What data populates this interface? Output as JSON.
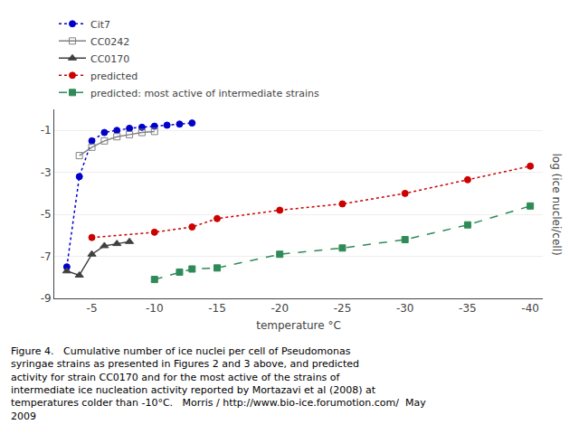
{
  "chart_data": {
    "type": "line",
    "x_label": "temperature °C",
    "y_label": "log (ice nuclei/cell)",
    "series": [
      {
        "name": "Cit7",
        "color": "#0000cc",
        "marker": "circle",
        "line_style": "dotted",
        "x": [
          -3,
          -4,
          -5,
          -6,
          -7,
          -8,
          -9,
          -10,
          -11,
          -12,
          -13
        ],
        "values": [
          -7.5,
          -3.2,
          -1.5,
          -1.1,
          -1.0,
          -0.9,
          -0.85,
          -0.8,
          -0.75,
          -0.7,
          -0.65
        ]
      },
      {
        "name": "CC0242",
        "color": "#808080",
        "marker": "square-open",
        "line_style": "solid",
        "x": [
          -4,
          -5,
          -6,
          -7,
          -8,
          -9,
          -10
        ],
        "values": [
          -2.2,
          -1.8,
          -1.5,
          -1.3,
          -1.2,
          -1.1,
          -1.05
        ]
      },
      {
        "name": "CC0170",
        "color": "#404040",
        "marker": "triangle-up",
        "line_style": "solid",
        "x": [
          -3,
          -4,
          -5,
          -6,
          -7,
          -8
        ],
        "values": [
          -7.7,
          -7.9,
          -6.9,
          -6.5,
          -6.4,
          -6.3
        ]
      },
      {
        "name": "predicted",
        "color": "#cc0000",
        "marker": "circle",
        "line_style": "dotted",
        "x": [
          -5,
          -10,
          -13,
          -15,
          -20,
          -25,
          -30,
          -35,
          -40
        ],
        "values": [
          -6.1,
          -5.85,
          -5.6,
          -5.2,
          -4.8,
          -4.5,
          -4.0,
          -3.35,
          -2.7
        ]
      },
      {
        "name": "predicted: most active of intermediate strains",
        "color": "#2e8b57",
        "marker": "square",
        "line_style": "dashed",
        "x": [
          -10,
          -12,
          -13,
          -15,
          -20,
          -25,
          -30,
          -35,
          -40
        ],
        "values": [
          -8.1,
          -7.75,
          -7.6,
          -7.55,
          -6.9,
          -6.6,
          -6.2,
          -5.5,
          -4.6
        ]
      }
    ],
    "xlim": [
      -2,
      -41
    ],
    "ylim": [
      -9,
      0
    ],
    "xticks": [
      -5,
      -10,
      -15,
      -20,
      -25,
      -30,
      -35,
      -40
    ],
    "yticks": [
      -1,
      -3,
      -5,
      -7,
      -9
    ],
    "grid": "y",
    "annotations": [
      "Figure 4.   Cumulative number of ice nuclei per cell of Pseudomonas",
      "syringae strains as presented in Figures 2 and 3 above, and predicted",
      "activity for strain CC0170 and for the most active of the strains of",
      "intermediate ice nucleation activity reported by Mortazavi et al (2008) at",
      "temperatures colder than -10°C.   Morris / http://www.bio-ice.forumotion.com/  May",
      "2009"
    ]
  }
}
